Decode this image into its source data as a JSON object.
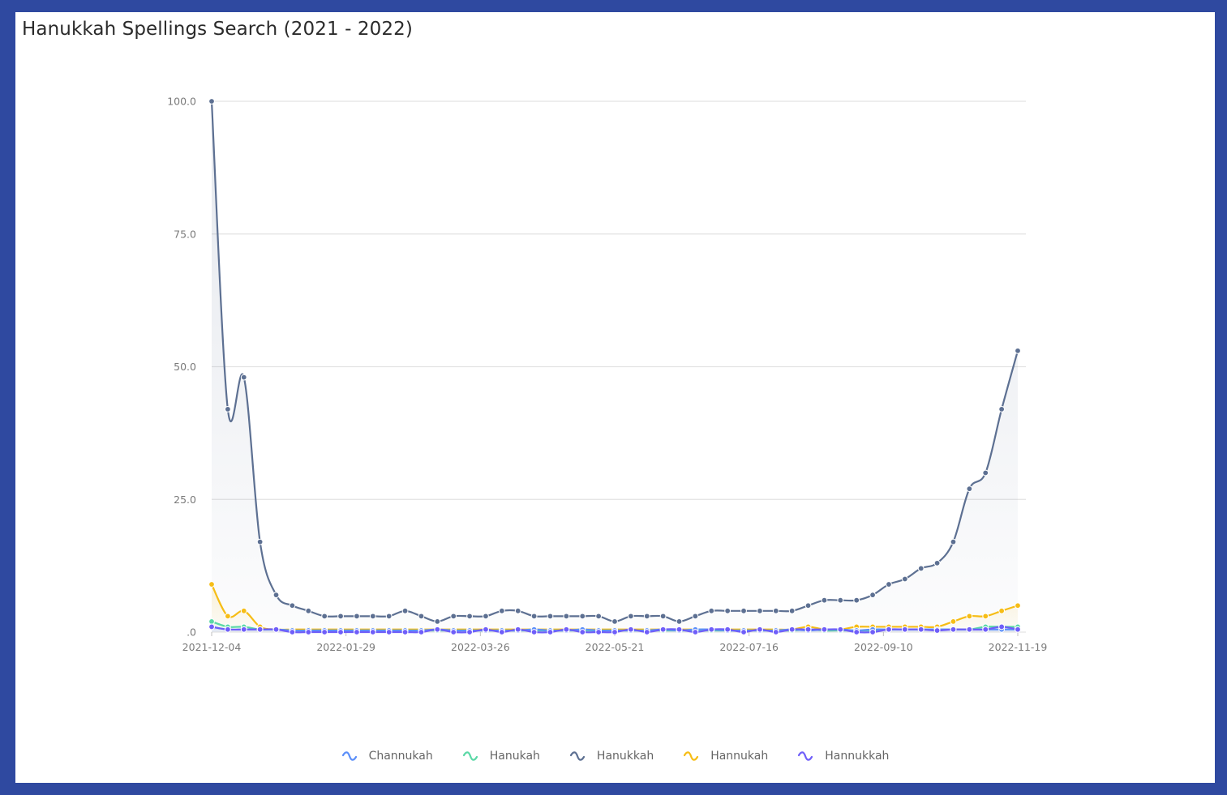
{
  "title": "Hanukkah Spellings Search (2021 - 2022)",
  "colors": {
    "Channukah": "#5b8ff9",
    "Hanukah": "#5ad8a6",
    "Hanukkah": "#5d7092",
    "Hannukah": "#f6bd16",
    "Hannukkah": "#6f5ef9"
  },
  "chart_data": {
    "type": "area",
    "title": "Hanukkah Spellings Search (2021 - 2022)",
    "x_ticks": [
      "2021-12-04",
      "2022-01-29",
      "2022-03-26",
      "2022-05-21",
      "2022-07-16",
      "2022-09-10",
      "2022-11-19"
    ],
    "y_ticks": [
      "100.0",
      "75.0",
      "50.0",
      "25.0",
      ".0"
    ],
    "ylim": [
      0,
      100
    ],
    "grid": true,
    "legend_position": "bottom",
    "series": [
      {
        "name": "Channukah",
        "values": [
          1,
          0.5,
          0.5,
          0.5,
          0.5,
          0.3,
          0.3,
          0.3,
          0.3,
          0.3,
          0.3,
          0.3,
          0.3,
          0.3,
          0.5,
          0.3,
          0.3,
          0.3,
          0.3,
          0.3,
          0.5,
          0.3,
          0.3,
          0.5,
          0.3,
          0.3,
          0.3,
          0.3,
          0.5,
          0.3,
          0.5,
          0.5,
          0.3,
          0.3,
          0.3,
          0.3,
          0.5,
          0.3,
          0.5,
          0.5,
          0.3,
          0.5,
          0.5,
          0.5,
          0.5,
          0.5,
          0.5,
          0.5,
          0.5,
          0.5,
          0.5
        ]
      },
      {
        "name": "Hanukah",
        "values": [
          2,
          1,
          1,
          0.5,
          0.5,
          0.3,
          0.3,
          0.3,
          0.3,
          0.3,
          0.3,
          0.3,
          0.3,
          0.3,
          0.3,
          0.3,
          0.3,
          0.3,
          0.3,
          0.3,
          0.3,
          0.3,
          0.3,
          0.3,
          0.3,
          0.3,
          0.3,
          0.3,
          0.3,
          0.3,
          0.3,
          0.3,
          0.3,
          0.3,
          0.3,
          0.3,
          0.3,
          0.5,
          0.3,
          0.3,
          0.3,
          0.3,
          0.5,
          0.5,
          0.5,
          0.5,
          0.5,
          0.5,
          1,
          1,
          1
        ]
      },
      {
        "name": "Hanukkah",
        "values": [
          100,
          42,
          48,
          17,
          7,
          5,
          4,
          3,
          3,
          3,
          3,
          3,
          4,
          3,
          2,
          3,
          3,
          3,
          4,
          4,
          3,
          3,
          3,
          3,
          3,
          2,
          3,
          3,
          3,
          2,
          3,
          4,
          4,
          4,
          4,
          4,
          4,
          5,
          6,
          6,
          6,
          7,
          9,
          10,
          12,
          13,
          17,
          27,
          30,
          42,
          53
        ]
      },
      {
        "name": "Hannukah",
        "values": [
          9,
          3,
          4,
          1,
          0.5,
          0.5,
          0.5,
          0.5,
          0.5,
          0.5,
          0.5,
          0.5,
          0.5,
          0.5,
          0.5,
          0.5,
          0.5,
          0.5,
          0.5,
          0.5,
          0.5,
          0.5,
          0.5,
          0.5,
          0.5,
          0.5,
          0.5,
          0.5,
          0.5,
          0.5,
          0.5,
          0.5,
          0.5,
          0.5,
          0.5,
          0.5,
          0.5,
          1,
          0.5,
          0.5,
          1,
          1,
          1,
          1,
          1,
          1,
          2,
          3,
          3,
          4,
          5
        ]
      },
      {
        "name": "Hannukkah",
        "values": [
          1,
          0.5,
          0.5,
          0.5,
          0.5,
          0,
          0,
          0,
          0,
          0,
          0,
          0,
          0,
          0,
          0.5,
          0,
          0,
          0.5,
          0,
          0.5,
          0,
          0,
          0.5,
          0,
          0,
          0,
          0.5,
          0,
          0.5,
          0.5,
          0,
          0.5,
          0.5,
          0,
          0.5,
          0,
          0.5,
          0.5,
          0.5,
          0.5,
          0,
          0,
          0.5,
          0.5,
          0.5,
          0.3,
          0.5,
          0.5,
          0.5,
          1,
          0.5
        ]
      }
    ]
  }
}
